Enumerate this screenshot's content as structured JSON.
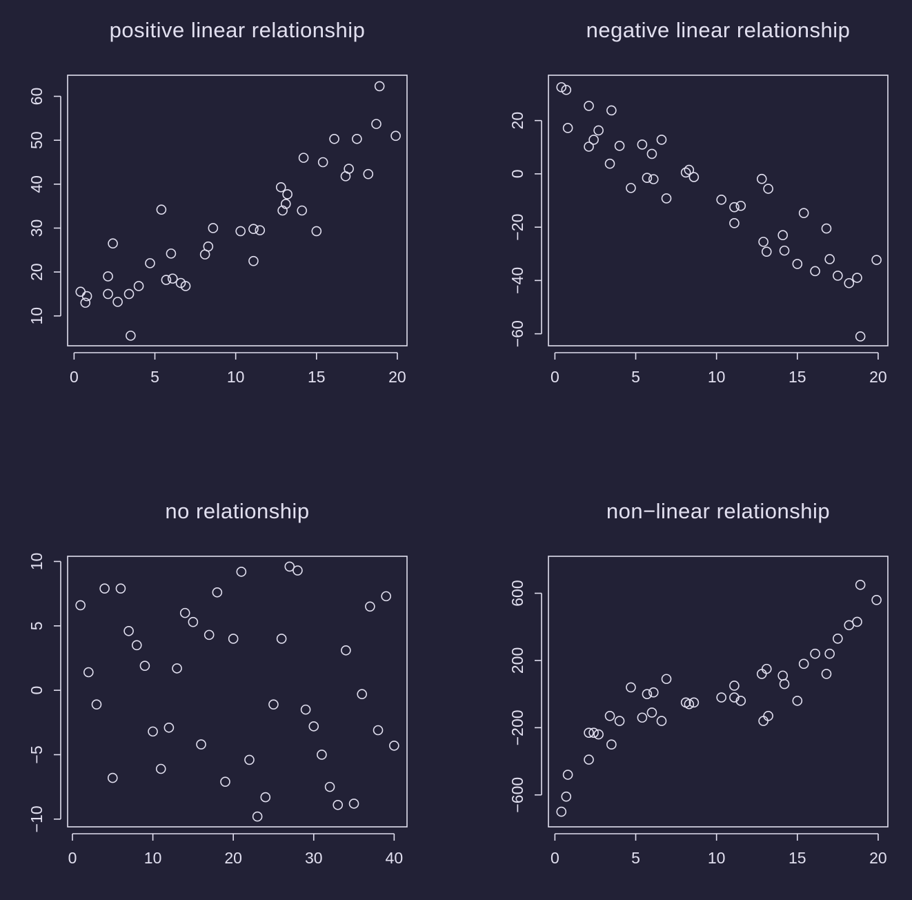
{
  "chart_data": [
    {
      "type": "scatter",
      "title": "positive linear relationship",
      "xlabel": "",
      "ylabel": "",
      "xlim": [
        -0.4,
        20.6
      ],
      "ylim": [
        3.2,
        64.8
      ],
      "xticks": [
        0,
        5,
        10,
        15,
        20
      ],
      "xtick_labels": [
        "0",
        "5",
        "10",
        "15",
        "20"
      ],
      "yticks": [
        10,
        20,
        30,
        40,
        50,
        60
      ],
      "ytick_labels": [
        "10",
        "20",
        "30",
        "40",
        "50",
        "60"
      ],
      "grid": false,
      "x": [
        0.4,
        0.7,
        0.8,
        2.1,
        2.1,
        2.4,
        2.7,
        3.4,
        3.5,
        4.0,
        4.7,
        5.4,
        5.7,
        6.0,
        6.1,
        6.6,
        6.9,
        8.1,
        8.3,
        8.6,
        10.3,
        11.1,
        11.1,
        11.5,
        12.8,
        12.9,
        13.1,
        13.2,
        14.1,
        14.2,
        15.0,
        15.4,
        16.1,
        16.8,
        17.0,
        17.5,
        18.2,
        18.7,
        18.9,
        19.9
      ],
      "y": [
        15.5,
        13.0,
        14.5,
        19.0,
        15.0,
        26.5,
        13.2,
        15.0,
        5.5,
        16.8,
        22.0,
        34.2,
        18.2,
        24.2,
        18.5,
        17.5,
        16.8,
        24.0,
        25.8,
        30.0,
        29.3,
        22.5,
        29.8,
        29.5,
        39.3,
        34.0,
        35.5,
        37.7,
        34.0,
        46.0,
        29.3,
        45.0,
        50.3,
        41.8,
        43.5,
        50.3,
        42.3,
        53.7,
        62.3,
        51.0
      ]
    },
    {
      "type": "scatter",
      "title": "negative linear relationship",
      "xlabel": "",
      "ylabel": "",
      "xlim": [
        -0.4,
        20.6
      ],
      "ylim": [
        -64.5,
        37.0
      ],
      "xticks": [
        0,
        5,
        10,
        15,
        20
      ],
      "xtick_labels": [
        "0",
        "5",
        "10",
        "15",
        "20"
      ],
      "yticks": [
        -60,
        -40,
        -20,
        0,
        20
      ],
      "ytick_labels": [
        "−60",
        "−40",
        "−20",
        "0",
        "20"
      ],
      "grid": false,
      "x": [
        0.4,
        0.7,
        0.8,
        2.1,
        2.1,
        2.4,
        2.7,
        3.4,
        3.5,
        4.0,
        4.7,
        5.4,
        5.7,
        6.0,
        6.1,
        6.6,
        6.9,
        8.1,
        8.3,
        8.6,
        10.3,
        11.1,
        11.1,
        11.5,
        12.8,
        12.9,
        13.1,
        13.2,
        14.1,
        14.2,
        15.0,
        15.4,
        16.1,
        16.8,
        17.0,
        17.5,
        18.2,
        18.7,
        18.9,
        19.9
      ],
      "y": [
        32.5,
        31.5,
        17.2,
        10.2,
        25.5,
        12.8,
        16.3,
        3.8,
        23.8,
        10.5,
        -5.3,
        11.0,
        -1.5,
        7.5,
        -2.0,
        12.8,
        -9.2,
        0.5,
        1.5,
        -1.2,
        -9.7,
        -18.5,
        -12.5,
        -12.0,
        -1.9,
        -25.5,
        -29.2,
        -5.6,
        -23.0,
        -28.8,
        -33.8,
        -14.7,
        -36.5,
        -20.5,
        -32.0,
        -38.2,
        -41.0,
        -39.0,
        -61.0,
        -32.3
      ]
    },
    {
      "type": "scatter",
      "title": "no relationship",
      "xlabel": "",
      "ylabel": "",
      "xlim": [
        -0.6,
        41.6
      ],
      "ylim": [
        -10.6,
        10.4
      ],
      "xticks": [
        0,
        10,
        20,
        30,
        40
      ],
      "xtick_labels": [
        "0",
        "10",
        "20",
        "30",
        "40"
      ],
      "yticks": [
        -10,
        -5,
        0,
        5,
        10
      ],
      "ytick_labels": [
        "−10",
        "−5",
        "0",
        "5",
        "10"
      ],
      "grid": false,
      "x": [
        1,
        2,
        3,
        4,
        5,
        6,
        7,
        8,
        9,
        10,
        11,
        12,
        13,
        14,
        15,
        16,
        17,
        18,
        19,
        20,
        21,
        22,
        23,
        24,
        25,
        26,
        27,
        28,
        29,
        30,
        31,
        32,
        33,
        34,
        35,
        36,
        37,
        38,
        39,
        40
      ],
      "y": [
        6.6,
        1.4,
        -1.1,
        7.9,
        -6.8,
        7.9,
        4.6,
        3.5,
        1.9,
        -3.2,
        -6.1,
        -2.9,
        1.7,
        6.0,
        5.3,
        -4.2,
        4.3,
        7.6,
        -7.1,
        4.0,
        9.2,
        -5.4,
        -9.8,
        -8.3,
        -1.1,
        4.0,
        9.6,
        9.3,
        -1.5,
        -2.8,
        -5.0,
        -7.5,
        -8.9,
        3.1,
        -8.8,
        -0.3,
        6.5,
        -3.1,
        7.3,
        -4.3
      ]
    },
    {
      "type": "scatter",
      "title": "non−linear relationship",
      "xlabel": "",
      "ylabel": "",
      "xlim": [
        -0.4,
        20.6
      ],
      "ylim": [
        -790,
        820
      ],
      "xticks": [
        0,
        5,
        10,
        15,
        20
      ],
      "xtick_labels": [
        "0",
        "5",
        "10",
        "15",
        "20"
      ],
      "yticks": [
        -600,
        -200,
        200,
        600
      ],
      "ytick_labels": [
        "−600",
        "−200",
        "200",
        "600"
      ],
      "grid": false,
      "x": [
        0.4,
        0.7,
        0.8,
        2.1,
        2.1,
        2.4,
        2.7,
        3.4,
        3.5,
        4.0,
        4.7,
        5.4,
        5.7,
        6.0,
        6.1,
        6.6,
        6.9,
        8.1,
        8.3,
        8.6,
        10.3,
        11.1,
        11.1,
        11.5,
        12.8,
        12.9,
        13.1,
        13.2,
        14.1,
        14.2,
        15.0,
        15.4,
        16.1,
        16.8,
        17.0,
        17.5,
        18.2,
        18.7,
        18.9,
        19.9
      ],
      "y": [
        -700,
        -610,
        -480,
        -230,
        -390,
        -230,
        -240,
        -130,
        -300,
        -160,
        40,
        -140,
        0,
        -110,
        10,
        -160,
        90,
        -50,
        -60,
        -50,
        -20,
        50,
        -20,
        -40,
        120,
        -160,
        150,
        -130,
        110,
        60,
        -40,
        180,
        240,
        120,
        240,
        330,
        410,
        430,
        650,
        560
      ]
    }
  ]
}
